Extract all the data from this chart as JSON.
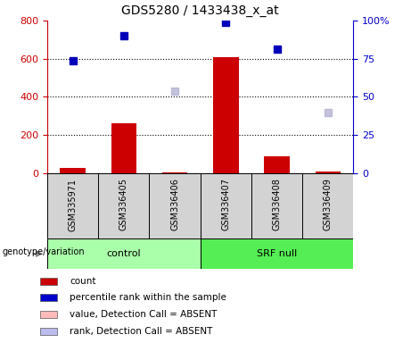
{
  "title": "GDS5280 / 1433438_x_at",
  "samples": [
    "GSM335971",
    "GSM336405",
    "GSM336406",
    "GSM336407",
    "GSM336408",
    "GSM336409"
  ],
  "groups": [
    {
      "label": "control",
      "indices": [
        0,
        1,
        2
      ],
      "color": "#aaffaa"
    },
    {
      "label": "SRF null",
      "indices": [
        3,
        4,
        5
      ],
      "color": "#55ee55"
    }
  ],
  "bar_values": [
    30,
    260,
    5,
    610,
    90,
    8
  ],
  "bar_color": "#cc0000",
  "blue_squares_present": {
    "indices": [
      0,
      1,
      3,
      4
    ],
    "values": [
      590,
      720,
      790,
      650
    ]
  },
  "blue_squares_absent": {
    "indices": [
      2,
      5
    ],
    "values": [
      430,
      320
    ]
  },
  "ylim_left": [
    0,
    800
  ],
  "ylim_right": [
    0,
    100
  ],
  "yticks_left": [
    0,
    200,
    400,
    600,
    800
  ],
  "yticks_right": [
    0,
    25,
    50,
    75,
    100
  ],
  "yticklabels_right": [
    "0",
    "25",
    "50",
    "75",
    "100%"
  ],
  "grid_values": [
    200,
    400,
    600
  ],
  "left_axis_color": "#cc0000",
  "right_axis_color": "#0000cc",
  "legend_items": [
    {
      "label": "count",
      "color": "#cc0000"
    },
    {
      "label": "percentile rank within the sample",
      "color": "#0000cc"
    },
    {
      "label": "value, Detection Call = ABSENT",
      "color": "#ffbbbb"
    },
    {
      "label": "rank, Detection Call = ABSENT",
      "color": "#bbbbee"
    }
  ],
  "genotype_label": "genotype/variation",
  "sample_box_color": "#d3d3d3",
  "bar_width": 0.5
}
